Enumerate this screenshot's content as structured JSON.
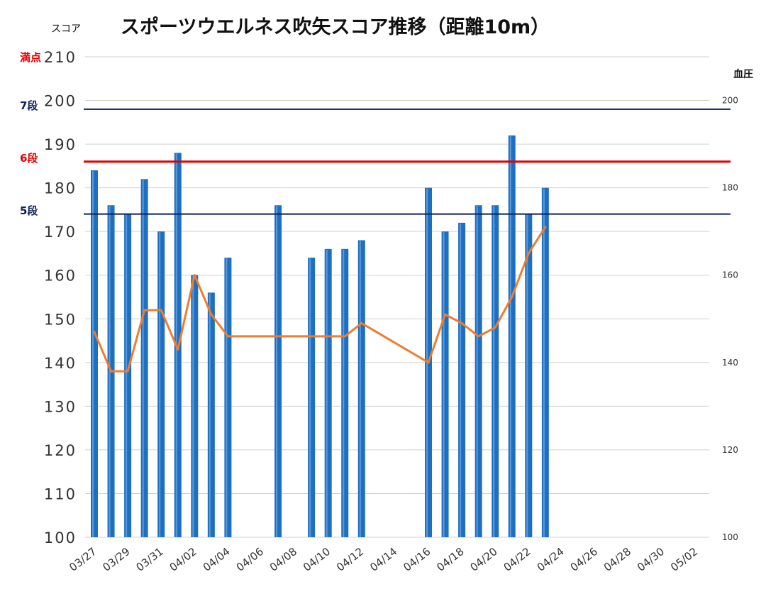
{
  "chart_data": {
    "type": "bar+line",
    "title": "スポーツウエルネス吹矢スコア推移（距離10m）",
    "ylabel_left": "スコア",
    "ylabel_right": "血圧",
    "y_left_range": [
      100,
      210
    ],
    "y_left_ticks": [
      "100",
      "110",
      "120",
      "130",
      "140",
      "150",
      "160",
      "170",
      "180",
      "190",
      "200",
      "210"
    ],
    "y_right_range": [
      100,
      210
    ],
    "y_right_ticks": [
      "100",
      "120",
      "140",
      "160",
      "180",
      "200"
    ],
    "x_range": [
      "03/27",
      "05/03"
    ],
    "x_ticks": [
      "03/27",
      "03/29",
      "03/31",
      "04/02",
      "04/04",
      "04/06",
      "04/08",
      "04/10",
      "04/12",
      "04/14",
      "04/16",
      "04/18",
      "04/20",
      "04/22",
      "04/24",
      "04/26",
      "04/28",
      "04/30",
      "05/02"
    ],
    "grid": true,
    "reference_lines": [
      {
        "label": "満点",
        "value": 210,
        "color": "#e00000"
      },
      {
        "label": "7段",
        "value": 198,
        "color": "#0d1f5c"
      },
      {
        "label": "6段",
        "value": 186,
        "color": "#e00000"
      },
      {
        "label": "5段",
        "value": 174,
        "color": "#0d1f5c"
      }
    ],
    "series": [
      {
        "kind": "bar",
        "color": "#1f6fc1",
        "points": [
          [
            "03/27",
            184
          ],
          [
            "03/28",
            176
          ],
          [
            "03/29",
            174
          ],
          [
            "03/30",
            182
          ],
          [
            "03/31",
            170
          ],
          [
            "04/01",
            188
          ],
          [
            "04/02",
            160
          ],
          [
            "04/03",
            156
          ],
          [
            "04/04",
            164
          ],
          [
            "04/07",
            176
          ],
          [
            "04/09",
            164
          ],
          [
            "04/10",
            166
          ],
          [
            "04/11",
            166
          ],
          [
            "04/12",
            168
          ],
          [
            "04/16",
            180
          ],
          [
            "04/17",
            170
          ],
          [
            "04/18",
            172
          ],
          [
            "04/19",
            176
          ],
          [
            "04/20",
            176
          ],
          [
            "04/21",
            192
          ],
          [
            "04/22",
            174
          ],
          [
            "04/23",
            180
          ]
        ]
      },
      {
        "kind": "line",
        "axis": "right",
        "color": "#ed7d31",
        "points": [
          [
            "03/27",
            147
          ],
          [
            "03/28",
            138
          ],
          [
            "03/29",
            138
          ],
          [
            "03/30",
            152
          ],
          [
            "03/31",
            152
          ],
          [
            "04/01",
            143
          ],
          [
            "04/02",
            160
          ],
          [
            "04/03",
            151
          ],
          [
            "04/04",
            146
          ],
          [
            "04/11",
            146
          ],
          [
            "04/12",
            149
          ],
          [
            "04/16",
            140
          ],
          [
            "04/17",
            151
          ],
          [
            "04/18",
            149
          ],
          [
            "04/19",
            146
          ],
          [
            "04/20",
            148
          ],
          [
            "04/21",
            155
          ],
          [
            "04/22",
            165
          ],
          [
            "04/23",
            171
          ]
        ]
      }
    ]
  }
}
